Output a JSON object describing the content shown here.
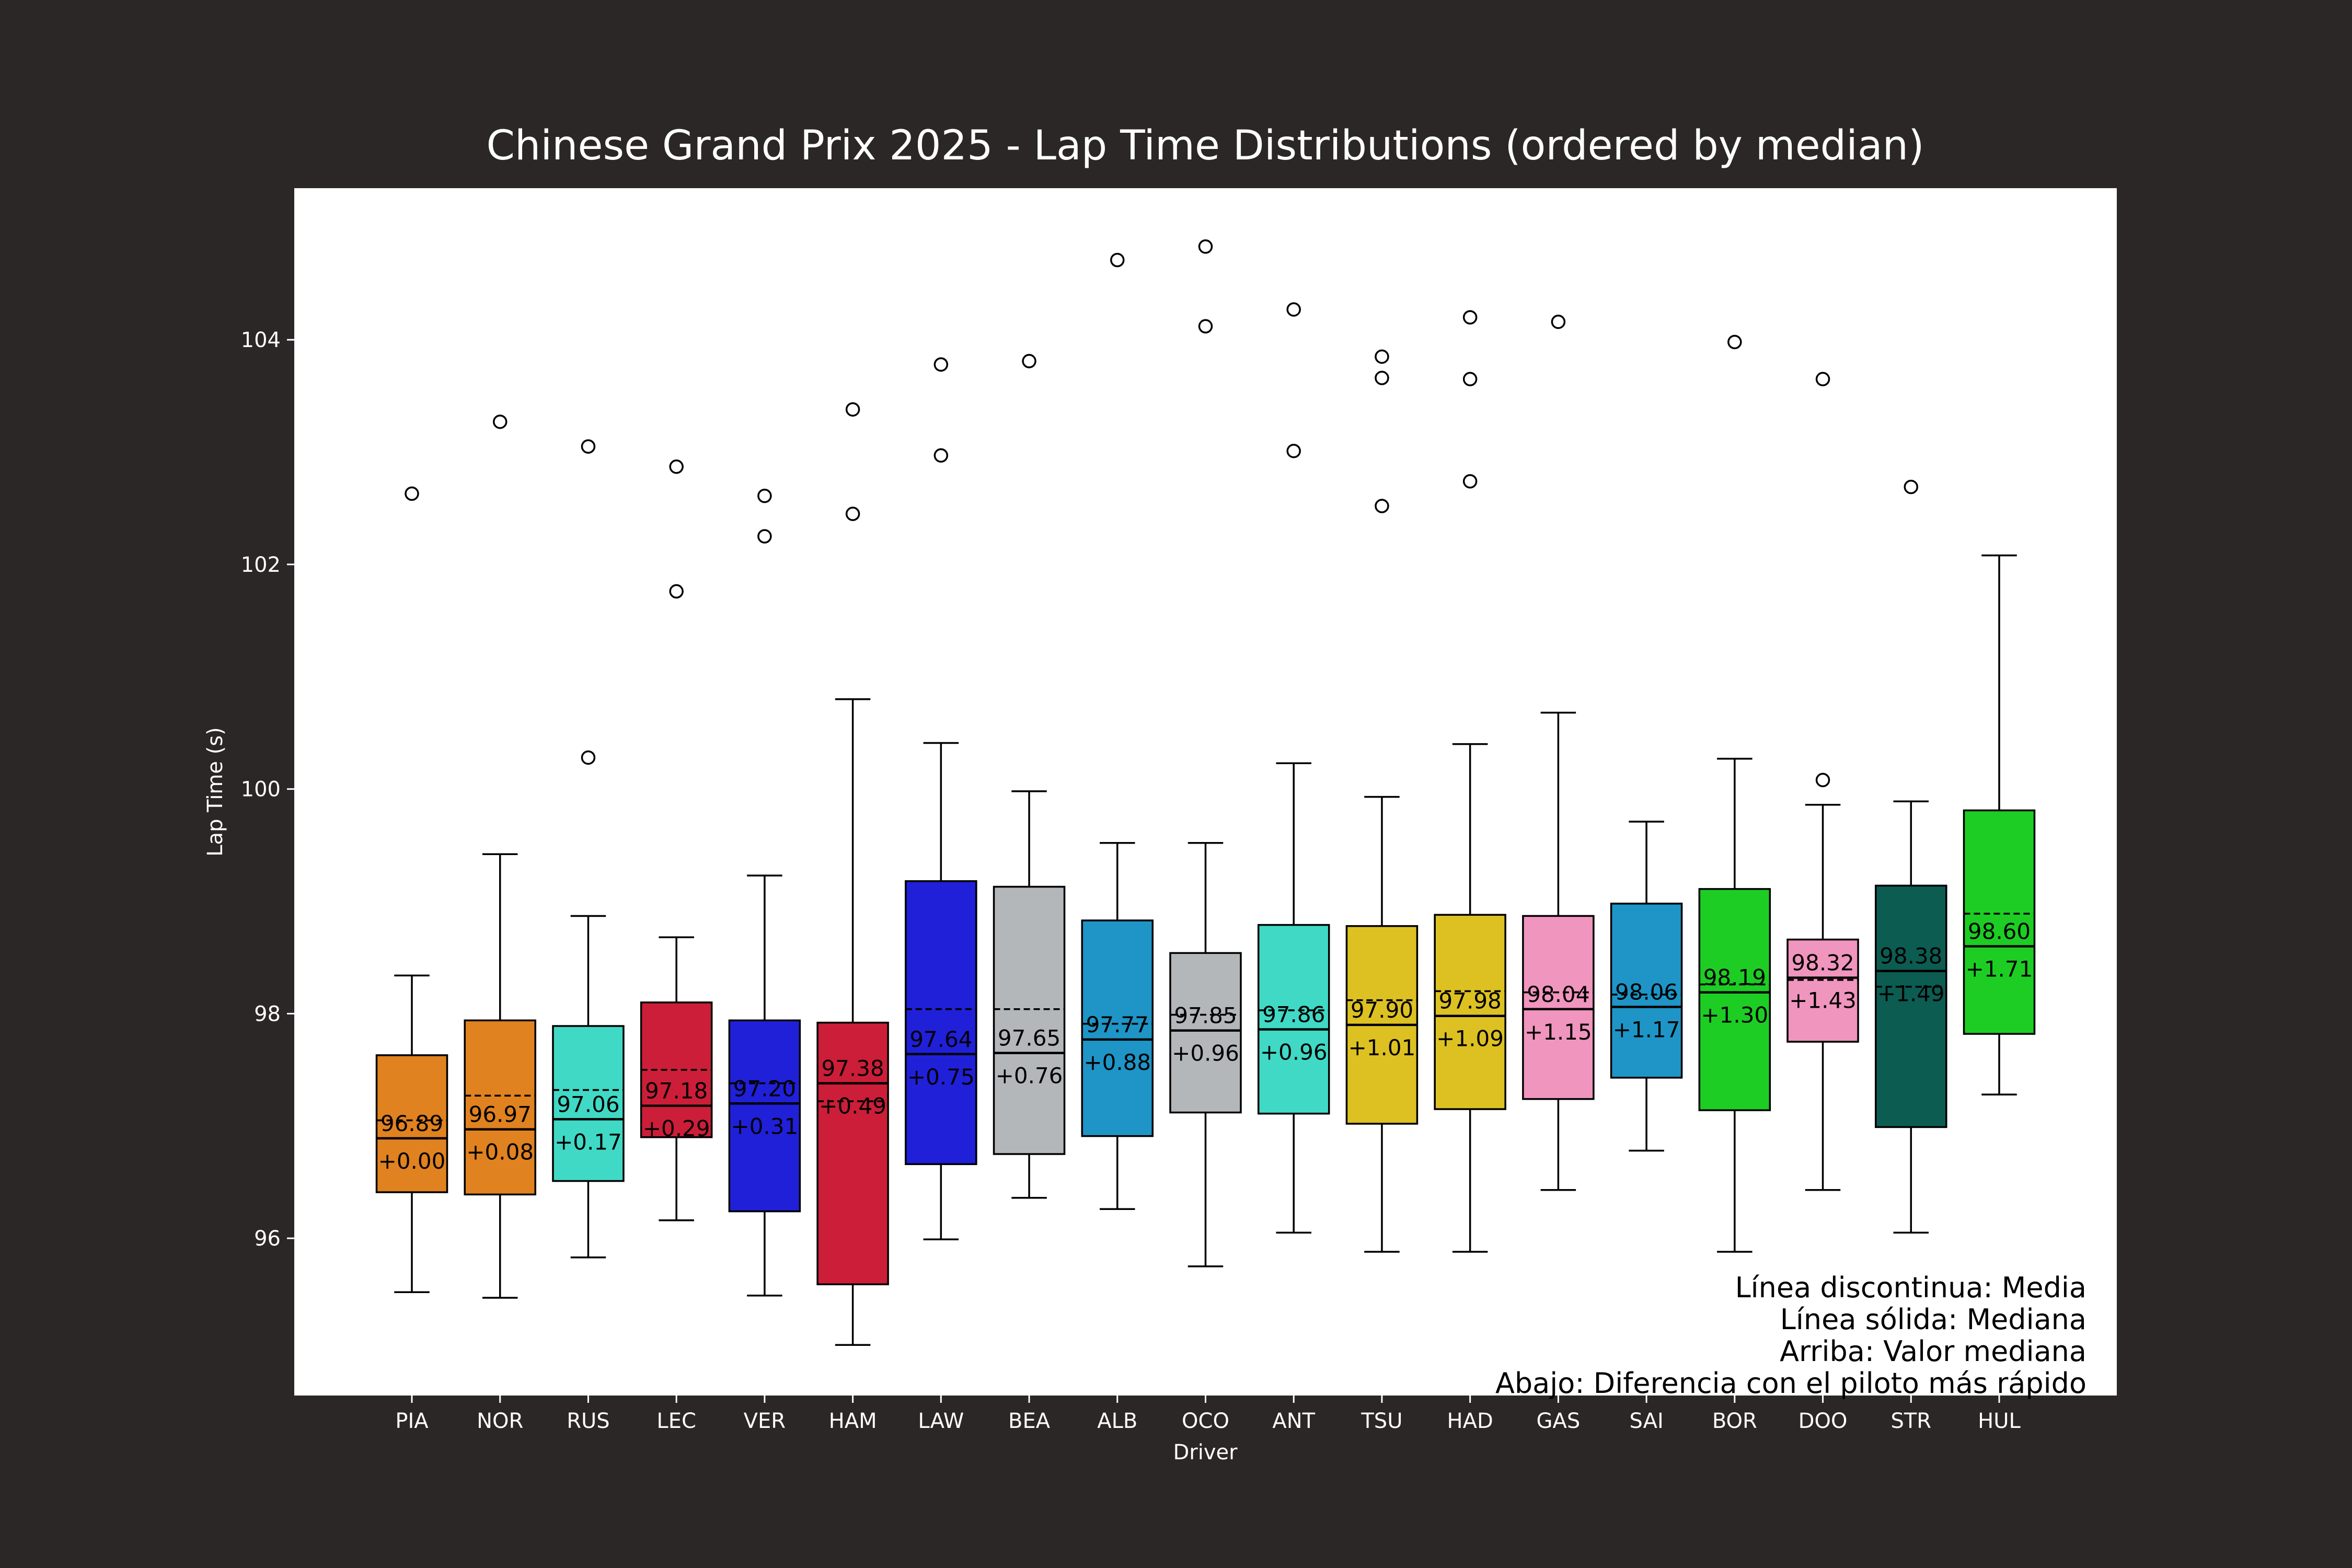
{
  "chart_data": {
    "type": "box",
    "title": "Chinese Grand Prix 2025 - Lap Time Distributions (ordered by median)",
    "xlabel": "Driver",
    "ylabel": "Lap Time (s)",
    "ylim": [
      94.6,
      105.35
    ],
    "yticks": [
      "96",
      "98",
      "100",
      "102",
      "104"
    ],
    "notes": [
      "Línea discontinua: Media",
      "Línea sólida: Mediana",
      "Arriba: Valor mediana",
      "Abajo: Diferencia con el piloto más rápido"
    ],
    "series": [
      {
        "driver": "PIA",
        "color": "#E08220",
        "whislo": 95.52,
        "q1": 96.41,
        "median": 96.89,
        "mean": 97.05,
        "q3": 97.63,
        "whishi": 98.34,
        "fliers": [
          102.63
        ],
        "median_label": "96.89",
        "delta_label": "+0.00"
      },
      {
        "driver": "NOR",
        "color": "#E08220",
        "whislo": 95.47,
        "q1": 96.39,
        "median": 96.97,
        "mean": 97.27,
        "q3": 97.94,
        "whishi": 99.42,
        "fliers": [
          103.27
        ],
        "median_label": "96.97",
        "delta_label": "+0.08"
      },
      {
        "driver": "RUS",
        "color": "#40D9C5",
        "whislo": 95.83,
        "q1": 96.51,
        "median": 97.06,
        "mean": 97.32,
        "q3": 97.89,
        "whishi": 98.87,
        "fliers": [
          100.28,
          103.05
        ],
        "median_label": "97.06",
        "delta_label": "+0.17"
      },
      {
        "driver": "LEC",
        "color": "#CC1E38",
        "whislo": 96.16,
        "q1": 96.9,
        "median": 97.18,
        "mean": 97.5,
        "q3": 98.1,
        "whishi": 98.68,
        "fliers": [
          101.76,
          102.87
        ],
        "median_label": "97.18",
        "delta_label": "+0.29"
      },
      {
        "driver": "VER",
        "color": "#2020D8",
        "whislo": 95.49,
        "q1": 96.24,
        "median": 97.2,
        "mean": 97.38,
        "q3": 97.94,
        "whishi": 99.23,
        "fliers": [
          102.25,
          102.61
        ],
        "median_label": "97.20",
        "delta_label": "+0.31"
      },
      {
        "driver": "HAM",
        "color": "#CC1E38",
        "whislo": 95.05,
        "q1": 95.59,
        "median": 97.38,
        "mean": 97.22,
        "q3": 97.92,
        "whishi": 100.8,
        "fliers": [
          102.45,
          103.38
        ],
        "median_label": "97.38",
        "delta_label": "+0.49"
      },
      {
        "driver": "LAW",
        "color": "#2020D8",
        "whislo": 95.99,
        "q1": 96.66,
        "median": 97.64,
        "mean": 98.04,
        "q3": 99.18,
        "whishi": 100.41,
        "fliers": [
          102.97,
          103.78
        ],
        "median_label": "97.64",
        "delta_label": "+0.75"
      },
      {
        "driver": "BEA",
        "color": "#B4B7BA",
        "whislo": 96.36,
        "q1": 96.75,
        "median": 97.65,
        "mean": 98.04,
        "q3": 99.13,
        "whishi": 99.98,
        "fliers": [
          103.81
        ],
        "median_label": "97.65",
        "delta_label": "+0.76"
      },
      {
        "driver": "ALB",
        "color": "#1E95C6",
        "whislo": 96.26,
        "q1": 96.91,
        "median": 97.77,
        "mean": 97.91,
        "q3": 98.83,
        "whishi": 99.52,
        "fliers": [
          104.71
        ],
        "median_label": "97.77",
        "delta_label": "+0.88"
      },
      {
        "driver": "OCO",
        "color": "#B4B7BA",
        "whislo": 95.75,
        "q1": 97.12,
        "median": 97.85,
        "mean": 97.99,
        "q3": 98.54,
        "whishi": 99.52,
        "fliers": [
          104.12,
          104.83
        ],
        "median_label": "97.85",
        "delta_label": "+0.96"
      },
      {
        "driver": "ANT",
        "color": "#40D9C5",
        "whislo": 96.05,
        "q1": 97.11,
        "median": 97.86,
        "mean": 98.03,
        "q3": 98.79,
        "whishi": 100.23,
        "fliers": [
          103.01,
          104.27
        ],
        "median_label": "97.86",
        "delta_label": "+0.96"
      },
      {
        "driver": "TSU",
        "color": "#DDC122",
        "whislo": 95.88,
        "q1": 97.02,
        "median": 97.9,
        "mean": 98.12,
        "q3": 98.78,
        "whishi": 99.93,
        "fliers": [
          102.52,
          103.66,
          103.85
        ],
        "median_label": "97.90",
        "delta_label": "+1.01"
      },
      {
        "driver": "HAD",
        "color": "#DDC122",
        "whislo": 95.88,
        "q1": 97.15,
        "median": 97.98,
        "mean": 98.2,
        "q3": 98.88,
        "whishi": 100.4,
        "fliers": [
          102.74,
          103.65,
          104.2
        ],
        "median_label": "97.98",
        "delta_label": "+1.09"
      },
      {
        "driver": "GAS",
        "color": "#F095BE",
        "whislo": 96.43,
        "q1": 97.24,
        "median": 98.04,
        "mean": 98.19,
        "q3": 98.87,
        "whishi": 100.68,
        "fliers": [
          104.16
        ],
        "median_label": "98.04",
        "delta_label": "+1.15"
      },
      {
        "driver": "SAI",
        "color": "#1E95C6",
        "whislo": 96.78,
        "q1": 97.43,
        "median": 98.06,
        "mean": 98.17,
        "q3": 98.98,
        "whishi": 99.71,
        "fliers": [],
        "median_label": "98.06",
        "delta_label": "+1.17"
      },
      {
        "driver": "BOR",
        "color": "#1DCD24",
        "whislo": 95.88,
        "q1": 97.14,
        "median": 98.19,
        "mean": 98.26,
        "q3": 99.11,
        "whishi": 100.27,
        "fliers": [
          103.98
        ],
        "median_label": "98.19",
        "delta_label": "+1.30"
      },
      {
        "driver": "DOO",
        "color": "#F095BE",
        "whislo": 96.43,
        "q1": 97.75,
        "median": 98.32,
        "mean": 98.3,
        "q3": 98.66,
        "whishi": 99.86,
        "fliers": [
          100.08,
          103.65
        ],
        "median_label": "98.32",
        "delta_label": "+1.43"
      },
      {
        "driver": "STR",
        "color": "#0C5C52",
        "whislo": 96.05,
        "q1": 96.99,
        "median": 98.38,
        "mean": 98.24,
        "q3": 99.14,
        "whishi": 99.89,
        "fliers": [
          102.69
        ],
        "median_label": "98.38",
        "delta_label": "+1.49"
      },
      {
        "driver": "HUL",
        "color": "#1DCD24",
        "whislo": 97.28,
        "q1": 97.82,
        "median": 98.6,
        "mean": 98.89,
        "q3": 99.81,
        "whishi": 102.08,
        "fliers": [],
        "median_label": "98.60",
        "delta_label": "+1.71"
      }
    ]
  }
}
